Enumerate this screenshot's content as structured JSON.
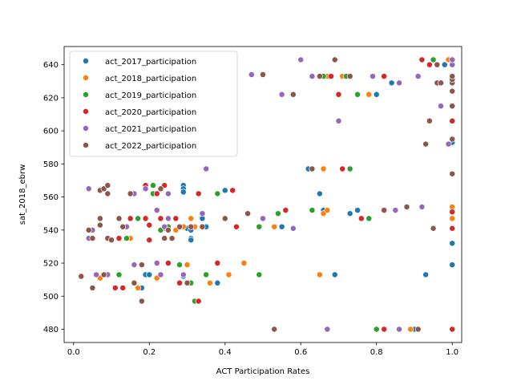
{
  "chart_data": {
    "type": "scatter",
    "title": "",
    "xlabel": "ACT Participation Rates",
    "ylabel": "sat_2018_ebrw",
    "xlim": [
      -0.025,
      1.025
    ],
    "ylim": [
      472,
      651
    ],
    "x_ticks": [
      "0.0",
      "0.2",
      "0.4",
      "0.6",
      "0.8",
      "1.0"
    ],
    "y_ticks": [
      "480",
      "500",
      "520",
      "540",
      "560",
      "580",
      "600",
      "620",
      "640"
    ],
    "grid": false,
    "legend_position": "top-left",
    "series": [
      {
        "name": "act_2017_participation",
        "color": "#1f77b4",
        "points": [
          [
            0.18,
            505
          ],
          [
            0.19,
            513
          ],
          [
            0.2,
            513
          ],
          [
            0.29,
            512
          ],
          [
            0.29,
            567
          ],
          [
            0.29,
            565
          ],
          [
            0.29,
            563
          ],
          [
            0.3,
            541
          ],
          [
            0.31,
            540
          ],
          [
            0.31,
            535
          ],
          [
            0.31,
            534
          ],
          [
            0.34,
            547
          ],
          [
            0.35,
            542
          ],
          [
            0.38,
            508
          ],
          [
            0.4,
            564
          ],
          [
            0.55,
            542
          ],
          [
            0.62,
            577
          ],
          [
            0.65,
            562
          ],
          [
            0.66,
            552
          ],
          [
            0.69,
            513
          ],
          [
            0.73,
            550
          ],
          [
            0.75,
            552
          ],
          [
            0.8,
            622
          ],
          [
            0.84,
            629
          ],
          [
            0.9,
            480
          ],
          [
            0.93,
            513
          ],
          [
            0.98,
            640
          ],
          [
            1.0,
            519
          ],
          [
            1.0,
            532
          ],
          [
            1.0,
            551
          ],
          [
            1.0,
            553
          ],
          [
            1.0,
            593
          ],
          [
            1.0,
            640
          ],
          [
            1.0,
            643
          ]
        ]
      },
      {
        "name": "act_2018_participation",
        "color": "#ff7f0e",
        "points": [
          [
            0.07,
            511
          ],
          [
            0.15,
            535
          ],
          [
            0.17,
            505
          ],
          [
            0.22,
            511
          ],
          [
            0.24,
            567
          ],
          [
            0.24,
            541
          ],
          [
            0.25,
            562
          ],
          [
            0.26,
            535
          ],
          [
            0.27,
            540
          ],
          [
            0.29,
            542
          ],
          [
            0.3,
            519
          ],
          [
            0.31,
            542
          ],
          [
            0.31,
            547
          ],
          [
            0.32,
            542
          ],
          [
            0.36,
            508
          ],
          [
            0.41,
            513
          ],
          [
            0.45,
            520
          ],
          [
            0.53,
            542
          ],
          [
            0.65,
            513
          ],
          [
            0.66,
            577
          ],
          [
            0.66,
            550
          ],
          [
            0.67,
            552
          ],
          [
            0.67,
            633
          ],
          [
            0.71,
            633
          ],
          [
            0.78,
            622
          ],
          [
            0.89,
            480
          ],
          [
            0.99,
            643
          ],
          [
            1.0,
            547
          ],
          [
            1.0,
            554
          ]
        ]
      },
      {
        "name": "act_2019_participation",
        "color": "#2ca02c",
        "points": [
          [
            0.12,
            513
          ],
          [
            0.13,
            505
          ],
          [
            0.14,
            535
          ],
          [
            0.17,
            547
          ],
          [
            0.21,
            567
          ],
          [
            0.21,
            562
          ],
          [
            0.23,
            540
          ],
          [
            0.25,
            547
          ],
          [
            0.25,
            542
          ],
          [
            0.28,
            519
          ],
          [
            0.31,
            508
          ],
          [
            0.32,
            497
          ],
          [
            0.35,
            513
          ],
          [
            0.38,
            562
          ],
          [
            0.49,
            513
          ],
          [
            0.49,
            542
          ],
          [
            0.54,
            550
          ],
          [
            0.63,
            552
          ],
          [
            0.66,
            633
          ],
          [
            0.72,
            633
          ],
          [
            0.73,
            577
          ],
          [
            0.75,
            622
          ],
          [
            0.78,
            547
          ],
          [
            0.8,
            480
          ],
          [
            0.95,
            643
          ]
        ]
      },
      {
        "name": "act_2020_participation",
        "color": "#d62728",
        "points": [
          [
            0.11,
            505
          ],
          [
            0.12,
            535
          ],
          [
            0.13,
            505
          ],
          [
            0.15,
            547
          ],
          [
            0.19,
            567
          ],
          [
            0.19,
            547
          ],
          [
            0.2,
            534
          ],
          [
            0.2,
            543
          ],
          [
            0.22,
            562
          ],
          [
            0.23,
            547
          ],
          [
            0.24,
            567
          ],
          [
            0.24,
            542
          ],
          [
            0.25,
            520
          ],
          [
            0.27,
            547
          ],
          [
            0.28,
            508
          ],
          [
            0.29,
            513
          ],
          [
            0.33,
            497
          ],
          [
            0.33,
            562
          ],
          [
            0.38,
            520
          ],
          [
            0.42,
            564
          ],
          [
            0.43,
            542
          ],
          [
            0.56,
            552
          ],
          [
            0.68,
            633
          ],
          [
            0.7,
            622
          ],
          [
            0.71,
            577
          ],
          [
            0.76,
            547
          ],
          [
            0.82,
            633
          ],
          [
            0.82,
            480
          ],
          [
            0.92,
            643
          ],
          [
            0.94,
            640
          ],
          [
            1.0,
            541
          ],
          [
            1.0,
            551
          ],
          [
            1.0,
            606
          ],
          [
            1.0,
            480
          ]
        ]
      },
      {
        "name": "act_2021_participation",
        "color": "#9467bd",
        "points": [
          [
            0.04,
            565
          ],
          [
            0.04,
            535
          ],
          [
            0.05,
            540
          ],
          [
            0.06,
            513
          ],
          [
            0.09,
            513
          ],
          [
            0.14,
            542
          ],
          [
            0.16,
            562
          ],
          [
            0.16,
            519
          ],
          [
            0.18,
            497
          ],
          [
            0.19,
            565
          ],
          [
            0.22,
            520
          ],
          [
            0.22,
            552
          ],
          [
            0.23,
            513
          ],
          [
            0.24,
            542
          ],
          [
            0.25,
            547
          ],
          [
            0.25,
            562
          ],
          [
            0.29,
            513
          ],
          [
            0.34,
            550
          ],
          [
            0.35,
            577
          ],
          [
            0.47,
            634
          ],
          [
            0.5,
            547
          ],
          [
            0.55,
            622
          ],
          [
            0.58,
            541
          ],
          [
            0.6,
            643
          ],
          [
            0.63,
            633
          ],
          [
            0.67,
            480
          ],
          [
            0.7,
            606
          ],
          [
            0.79,
            633
          ],
          [
            0.85,
            552
          ],
          [
            0.86,
            629
          ],
          [
            0.86,
            480
          ],
          [
            0.91,
            633
          ],
          [
            0.92,
            554
          ],
          [
            0.97,
            615
          ],
          [
            0.99,
            592
          ],
          [
            1.0,
            640
          ],
          [
            1.0,
            643
          ]
        ]
      },
      {
        "name": "act_2022_participation",
        "color": "#8c564b",
        "points": [
          [
            0.02,
            512
          ],
          [
            0.04,
            540
          ],
          [
            0.05,
            535
          ],
          [
            0.05,
            505
          ],
          [
            0.07,
            547
          ],
          [
            0.07,
            543
          ],
          [
            0.07,
            564
          ],
          [
            0.08,
            565
          ],
          [
            0.08,
            513
          ],
          [
            0.09,
            562
          ],
          [
            0.09,
            567
          ],
          [
            0.09,
            535
          ],
          [
            0.1,
            534
          ],
          [
            0.12,
            547
          ],
          [
            0.13,
            542
          ],
          [
            0.15,
            562
          ],
          [
            0.16,
            508
          ],
          [
            0.18,
            519
          ],
          [
            0.18,
            497
          ],
          [
            0.23,
            565
          ],
          [
            0.24,
            535
          ],
          [
            0.25,
            540
          ],
          [
            0.26,
            535
          ],
          [
            0.28,
            542
          ],
          [
            0.3,
            508
          ],
          [
            0.31,
            542
          ],
          [
            0.34,
            542
          ],
          [
            0.4,
            547
          ],
          [
            0.46,
            550
          ],
          [
            0.5,
            634
          ],
          [
            0.53,
            480
          ],
          [
            0.58,
            622
          ],
          [
            0.63,
            577
          ],
          [
            0.65,
            633
          ],
          [
            0.69,
            643
          ],
          [
            0.73,
            633
          ],
          [
            0.82,
            552
          ],
          [
            0.88,
            554
          ],
          [
            0.91,
            480
          ],
          [
            0.93,
            592
          ],
          [
            0.94,
            606
          ],
          [
            0.95,
            541
          ],
          [
            0.96,
            629
          ],
          [
            0.96,
            640
          ],
          [
            0.97,
            629
          ],
          [
            1.0,
            574
          ],
          [
            1.0,
            595
          ],
          [
            1.0,
            615
          ],
          [
            1.0,
            624
          ],
          [
            1.0,
            629
          ],
          [
            1.0,
            631
          ],
          [
            1.0,
            633
          ]
        ]
      }
    ]
  }
}
